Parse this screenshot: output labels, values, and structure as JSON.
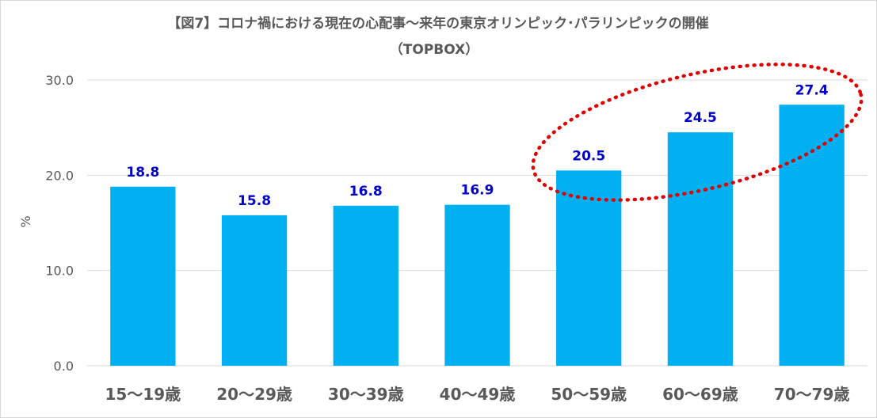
{
  "chart_data": {
    "type": "bar",
    "title": "【図7】コロナ禍における現在の心配事～来年の東京オリンピック･パラリンピックの開催",
    "subtitle": "（TOPBOX）",
    "xlabel": "",
    "ylabel": "%",
    "categories": [
      "15～19歳",
      "20～29歳",
      "30～39歳",
      "40～49歳",
      "50～59歳",
      "60～69歳",
      "70～79歳"
    ],
    "values": [
      18.8,
      15.8,
      16.8,
      16.9,
      20.5,
      24.5,
      27.4
    ],
    "value_labels": [
      "18.8",
      "15.8",
      "16.8",
      "16.9",
      "20.5",
      "24.5",
      "27.4"
    ],
    "ylim": [
      0,
      30
    ],
    "yticks": [
      "0.0",
      "10.0",
      "20.0",
      "30.0"
    ],
    "ytick_values": [
      0,
      10,
      20,
      30
    ],
    "grid": true,
    "legend": "none",
    "highlight": {
      "shape": "dotted-ellipse",
      "categories": [
        "50～59歳",
        "60～69歳",
        "70～79歳"
      ]
    }
  },
  "colors": {
    "bar": "#00b0f0",
    "data_label": "#0000cc",
    "highlight": "#e00000",
    "grid": "#d9d9d9",
    "text": "#595959"
  }
}
